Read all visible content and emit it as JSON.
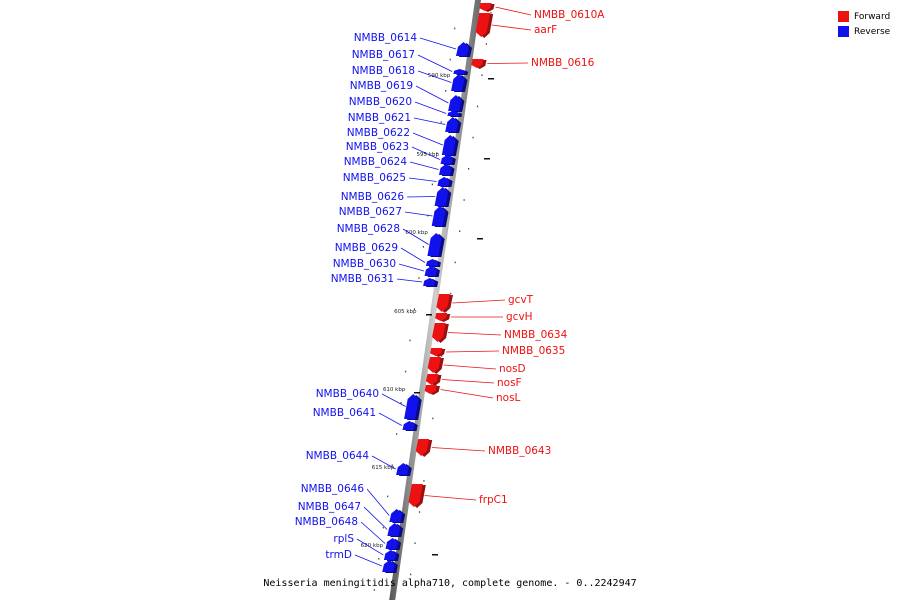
{
  "legend": {
    "forward_label": "Forward",
    "reverse_label": "Reverse",
    "forward_color": "#ee1111",
    "reverse_color": "#1111ee"
  },
  "caption": "Neisseria meningitidis alpha710, complete genome. - 0..2242947",
  "scale_ticks": [
    "590 kbp",
    "595 kbp",
    "600 kbp",
    "605 kbp",
    "610 kbp",
    "615 kbp",
    "620 kbp"
  ],
  "genes": [
    {
      "name": "NMBB_0610A",
      "strand": "forward"
    },
    {
      "name": "aarF",
      "strand": "forward"
    },
    {
      "name": "NMBB_0614",
      "strand": "reverse"
    },
    {
      "name": "NMBB_0616",
      "strand": "forward"
    },
    {
      "name": "NMBB_0617",
      "strand": "reverse"
    },
    {
      "name": "NMBB_0618",
      "strand": "reverse"
    },
    {
      "name": "NMBB_0619",
      "strand": "reverse"
    },
    {
      "name": "NMBB_0620",
      "strand": "reverse"
    },
    {
      "name": "NMBB_0621",
      "strand": "reverse"
    },
    {
      "name": "NMBB_0622",
      "strand": "reverse"
    },
    {
      "name": "NMBB_0623",
      "strand": "reverse"
    },
    {
      "name": "NMBB_0624",
      "strand": "reverse"
    },
    {
      "name": "NMBB_0625",
      "strand": "reverse"
    },
    {
      "name": "NMBB_0626",
      "strand": "reverse"
    },
    {
      "name": "NMBB_0627",
      "strand": "reverse"
    },
    {
      "name": "NMBB_0628",
      "strand": "reverse"
    },
    {
      "name": "NMBB_0629",
      "strand": "reverse"
    },
    {
      "name": "NMBB_0630",
      "strand": "reverse"
    },
    {
      "name": "NMBB_0631",
      "strand": "reverse"
    },
    {
      "name": "gcvT",
      "strand": "forward"
    },
    {
      "name": "gcvH",
      "strand": "forward"
    },
    {
      "name": "NMBB_0634",
      "strand": "forward"
    },
    {
      "name": "NMBB_0635",
      "strand": "forward"
    },
    {
      "name": "nosD",
      "strand": "forward"
    },
    {
      "name": "nosF",
      "strand": "forward"
    },
    {
      "name": "nosL",
      "strand": "forward"
    },
    {
      "name": "NMBB_0640",
      "strand": "reverse"
    },
    {
      "name": "NMBB_0641",
      "strand": "reverse"
    },
    {
      "name": "NMBB_0643",
      "strand": "forward"
    },
    {
      "name": "NMBB_0644",
      "strand": "reverse"
    },
    {
      "name": "frpC1",
      "strand": "forward"
    },
    {
      "name": "NMBB_0646",
      "strand": "reverse"
    },
    {
      "name": "NMBB_0647",
      "strand": "reverse"
    },
    {
      "name": "NMBB_0648",
      "strand": "reverse"
    },
    {
      "name": "rplS",
      "strand": "reverse"
    },
    {
      "name": "trmD",
      "strand": "reverse"
    }
  ]
}
